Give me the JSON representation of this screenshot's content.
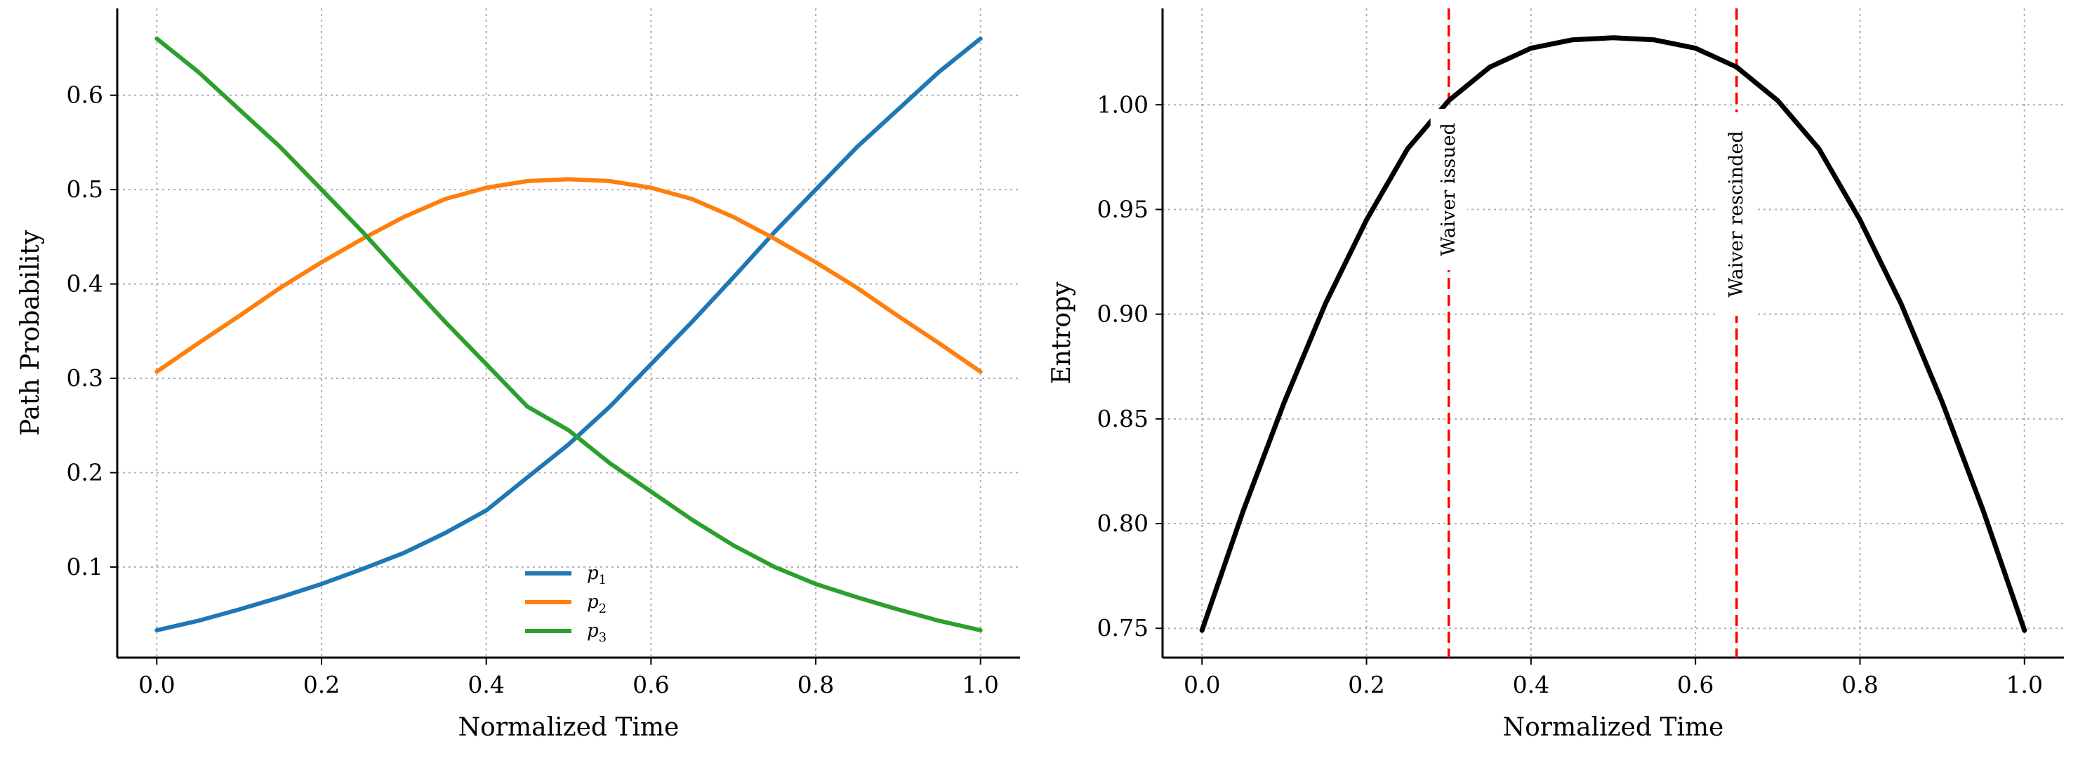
{
  "chart_data": [
    {
      "type": "line",
      "xlabel": "Normalized Time",
      "ylabel": "Path Probability",
      "xlim": [
        -0.048,
        1.048
      ],
      "ylim": [
        0.004,
        0.692
      ],
      "xticks": [
        "0.0",
        "0.2",
        "0.4",
        "0.6",
        "0.8",
        "1.0"
      ],
      "yticks": [
        "0.1",
        "0.2",
        "0.3",
        "0.4",
        "0.5",
        "0.6"
      ],
      "grid": true,
      "legend_position": "lower-center",
      "series": [
        {
          "name": "p",
          "subscript": "1",
          "color": "#1f77b4",
          "x": [
            0.0,
            0.05,
            0.1,
            0.15,
            0.2,
            0.25,
            0.3,
            0.35,
            0.4,
            0.45,
            0.5,
            0.55,
            0.6,
            0.65,
            0.7,
            0.75,
            0.8,
            0.85,
            0.9,
            0.95,
            1.0
          ],
          "values": [
            0.033,
            0.043,
            0.055,
            0.068,
            0.082,
            0.098,
            0.115,
            0.136,
            0.16,
            0.195,
            0.23,
            0.27,
            0.315,
            0.36,
            0.407,
            0.455,
            0.5,
            0.545,
            0.585,
            0.625,
            0.66
          ]
        },
        {
          "name": "p",
          "subscript": "2",
          "color": "#ff7f0e",
          "x": [
            0.0,
            0.05,
            0.1,
            0.15,
            0.2,
            0.25,
            0.3,
            0.35,
            0.4,
            0.45,
            0.5,
            0.55,
            0.6,
            0.65,
            0.7,
            0.75,
            0.8,
            0.85,
            0.9,
            0.95,
            1.0
          ],
          "values": [
            0.307,
            0.337,
            0.366,
            0.396,
            0.423,
            0.448,
            0.471,
            0.49,
            0.502,
            0.509,
            0.511,
            0.509,
            0.502,
            0.49,
            0.471,
            0.448,
            0.423,
            0.396,
            0.366,
            0.337,
            0.307
          ]
        },
        {
          "name": "p",
          "subscript": "3",
          "color": "#2ca02c",
          "x": [
            0.0,
            0.05,
            0.1,
            0.15,
            0.2,
            0.25,
            0.3,
            0.35,
            0.4,
            0.45,
            0.5,
            0.55,
            0.6,
            0.65,
            0.7,
            0.75,
            0.8,
            0.85,
            0.9,
            0.95,
            1.0
          ],
          "values": [
            0.66,
            0.625,
            0.585,
            0.545,
            0.5,
            0.455,
            0.407,
            0.36,
            0.315,
            0.27,
            0.245,
            0.21,
            0.18,
            0.15,
            0.123,
            0.1,
            0.082,
            0.068,
            0.055,
            0.043,
            0.033
          ]
        }
      ]
    },
    {
      "type": "line",
      "xlabel": "Normalized Time",
      "ylabel": "Entropy",
      "xlim": [
        -0.048,
        1.048
      ],
      "ylim": [
        0.736,
        1.046
      ],
      "xticks": [
        "0.0",
        "0.2",
        "0.4",
        "0.6",
        "0.8",
        "1.0"
      ],
      "yticks": [
        "0.75",
        "0.80",
        "0.85",
        "0.90",
        "0.95",
        "1.00"
      ],
      "grid": true,
      "series": [
        {
          "color": "#000000",
          "x": [
            0.0,
            0.05,
            0.1,
            0.15,
            0.2,
            0.25,
            0.3,
            0.35,
            0.4,
            0.45,
            0.5,
            0.55,
            0.6,
            0.65,
            0.7,
            0.75,
            0.8,
            0.85,
            0.9,
            0.95,
            1.0
          ],
          "values": [
            0.749,
            0.806,
            0.858,
            0.905,
            0.945,
            0.979,
            1.002,
            1.018,
            1.027,
            1.031,
            1.032,
            1.031,
            1.027,
            1.018,
            1.002,
            0.979,
            0.945,
            0.905,
            0.858,
            0.806,
            0.749
          ]
        }
      ],
      "vlines": [
        {
          "x": 0.3,
          "label": "Waiver issued",
          "color": "#ff0000"
        },
        {
          "x": 0.65,
          "label": "Waiver rescinded",
          "color": "#ff0000"
        }
      ]
    }
  ]
}
